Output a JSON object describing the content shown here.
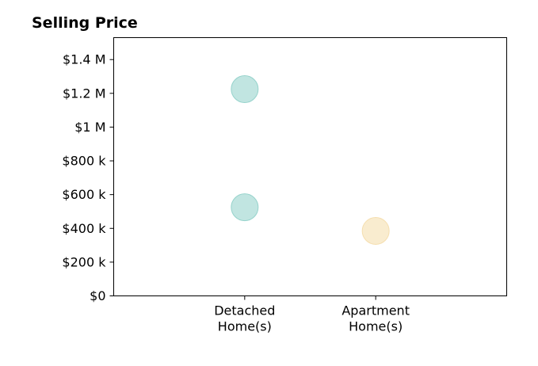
{
  "chart_data": {
    "type": "scatter",
    "title": "Selling Price",
    "xlabel": "",
    "ylabel": "",
    "categories": [
      "Detached\nHome(s)",
      "Apartment\nHome(s)"
    ],
    "x_range": [
      -1,
      2
    ],
    "ylim": [
      0,
      1530000
    ],
    "y_ticks": [
      {
        "value": 0,
        "label": "$0"
      },
      {
        "value": 200000,
        "label": "$200 k"
      },
      {
        "value": 400000,
        "label": "$400 k"
      },
      {
        "value": 600000,
        "label": "$600 k"
      },
      {
        "value": 800000,
        "label": "$800 k"
      },
      {
        "value": 1000000,
        "label": "$1 M"
      },
      {
        "value": 1200000,
        "label": "$1.2 M"
      },
      {
        "value": 1400000,
        "label": "$1.4 M"
      }
    ],
    "grid": false,
    "points": [
      {
        "category_index": 0,
        "value": 1225000,
        "color": "#8ecfc8"
      },
      {
        "category_index": 0,
        "value": 525000,
        "color": "#8ecfc8"
      },
      {
        "category_index": 1,
        "value": 385000,
        "color": "#f4dca8"
      }
    ],
    "point_opacity": 0.55
  }
}
